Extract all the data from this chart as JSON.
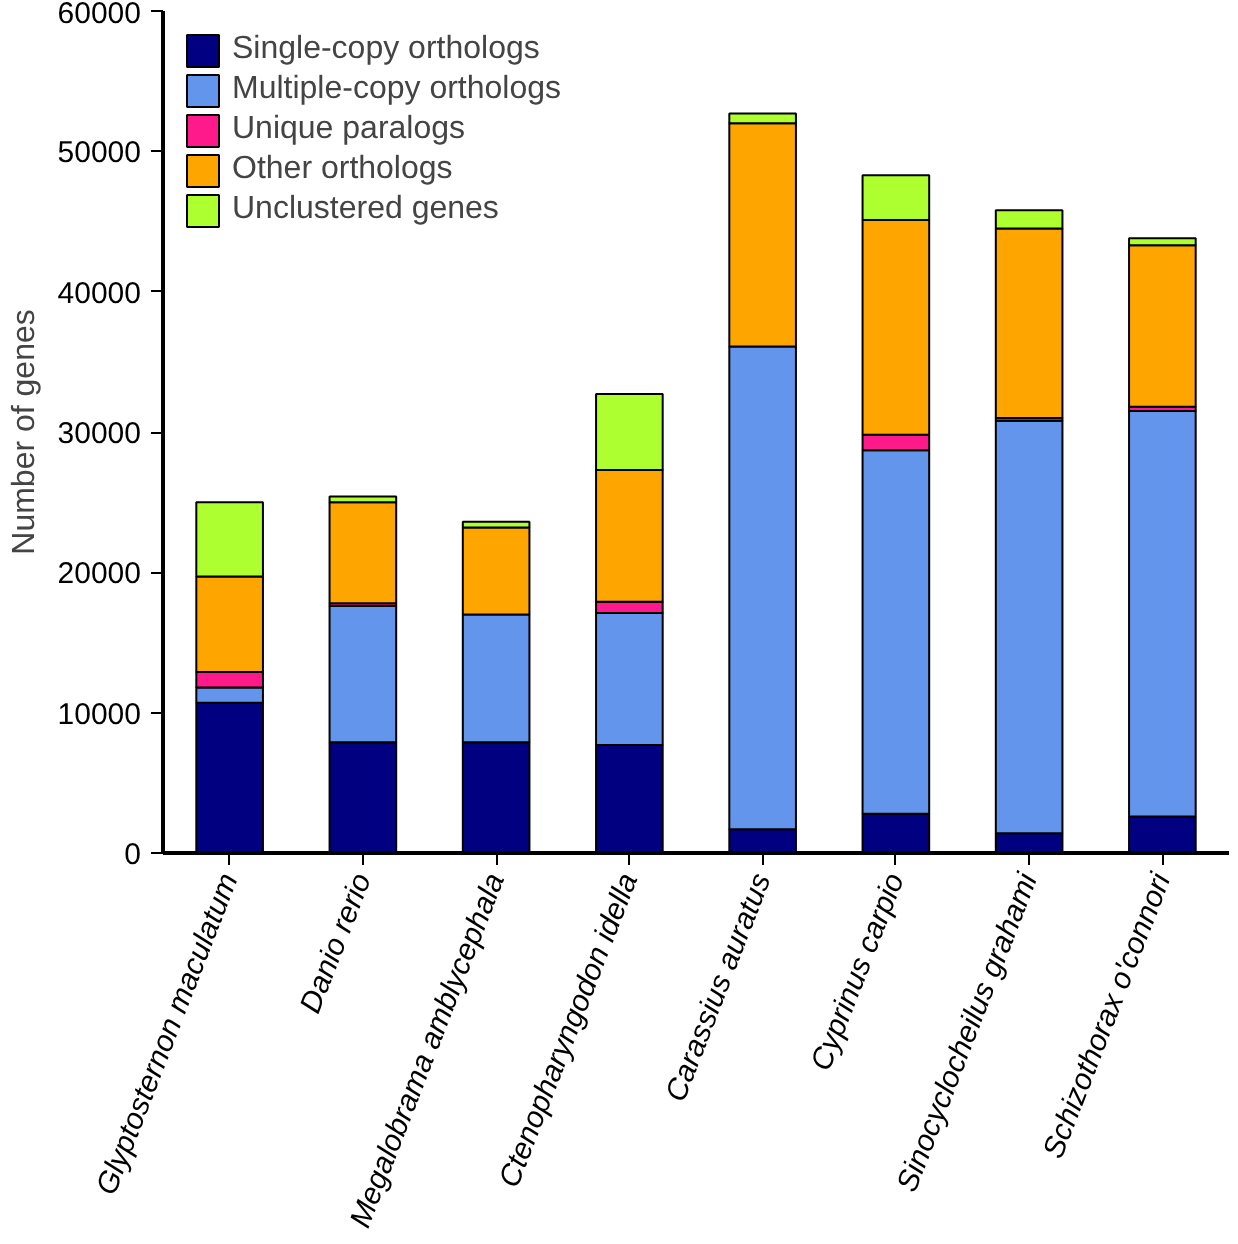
{
  "chart_data": {
    "type": "bar",
    "stacked": true,
    "ylabel": "Number of genes",
    "categories": [
      "Glyptosternon maculatum",
      "Danio rerio",
      "Megalobrama amblycephala",
      "Ctenopharyngodon idella",
      "Carassius auratus",
      "Cyprinus carpio",
      "Sinocyclocheilus grahami",
      "Schizothorax o'connori"
    ],
    "series": [
      {
        "name": "Single-copy orthologs",
        "color": "#000080",
        "values": [
          10700,
          7900,
          7900,
          7700,
          1700,
          2800,
          1400,
          2600
        ]
      },
      {
        "name": "Multiple-copy orthologs",
        "color": "#6495ed",
        "values": [
          1100,
          9700,
          9100,
          9400,
          34400,
          25900,
          29400,
          28900
        ]
      },
      {
        "name": "Unique paralogs",
        "color": "#ff1a8c",
        "values": [
          1100,
          200,
          null,
          800,
          null,
          1100,
          200,
          300
        ]
      },
      {
        "name": "Other orthologs",
        "color": "#ffa500",
        "values": [
          6800,
          7200,
          6200,
          9400,
          15900,
          15300,
          13500,
          11500
        ]
      },
      {
        "name": "Unclustered genes",
        "color": "#adff2f",
        "values": [
          5300,
          400,
          400,
          5400,
          700,
          3200,
          1300,
          500
        ]
      }
    ],
    "ylim": [
      0,
      60000
    ],
    "yticks": [
      0,
      10000,
      20000,
      30000,
      40000,
      50000,
      60000
    ],
    "grid": false,
    "legend": "top left"
  }
}
